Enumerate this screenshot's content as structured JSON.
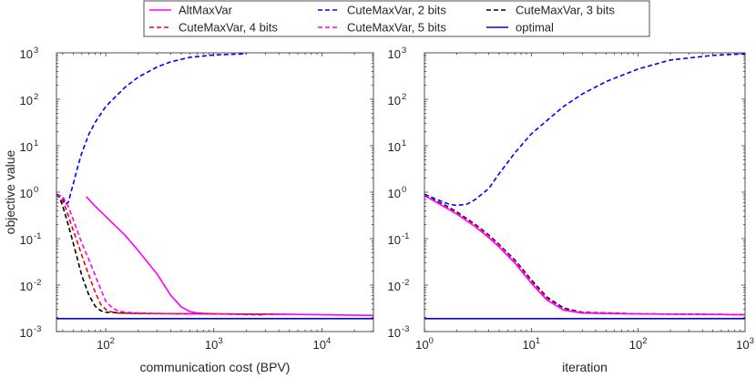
{
  "legend": {
    "entries": [
      {
        "label": "AltMaxVar",
        "color": "#ff00ff",
        "dash": "solid"
      },
      {
        "label": "CuteMaxVar, 2 bits",
        "color": "#0000ff",
        "dash": "dashed"
      },
      {
        "label": "CuteMaxVar, 3 bits",
        "color": "#000000",
        "dash": "dashed"
      },
      {
        "label": "CuteMaxVar, 4 bits",
        "color": "#ff0000",
        "dash": "dashed"
      },
      {
        "label": "CuteMaxVar, 5 bits",
        "color": "#ff00ff",
        "dash": "dashed"
      },
      {
        "label": "optimal",
        "color": "#0000ff",
        "dash": "solid"
      }
    ]
  },
  "chart_data": [
    {
      "type": "line",
      "xscale": "log",
      "yscale": "log",
      "xlim": [
        35,
        30000
      ],
      "ylim": [
        0.001,
        1000
      ],
      "xlabel": "communication cost (BPV)",
      "ylabel": "objective value",
      "xticks": [
        {
          "value": 100,
          "base": "10",
          "exp": "2"
        },
        {
          "value": 1000,
          "base": "10",
          "exp": "3"
        },
        {
          "value": 10000,
          "base": "10",
          "exp": "4"
        }
      ],
      "yticks": [
        {
          "value": 0.001,
          "base": "10",
          "exp": "-3"
        },
        {
          "value": 0.01,
          "base": "10",
          "exp": "-2"
        },
        {
          "value": 0.1,
          "base": "10",
          "exp": "-1"
        },
        {
          "value": 1,
          "base": "10",
          "exp": "0"
        },
        {
          "value": 10,
          "base": "10",
          "exp": "1"
        },
        {
          "value": 100,
          "base": "10",
          "exp": "2"
        },
        {
          "value": 1000,
          "base": "10",
          "exp": "3"
        }
      ],
      "series": [
        {
          "name": "CuteMaxVar, 2 bits",
          "color": "#0000ff",
          "dash": "dashed",
          "x": [
            40,
            42,
            45,
            50,
            55,
            60,
            70,
            80,
            100,
            150,
            200,
            300,
            400,
            600,
            800,
            1000,
            1500,
            2000
          ],
          "y": [
            0.75,
            0.55,
            0.6,
            1.5,
            3.5,
            7,
            18,
            32,
            70,
            180,
            300,
            500,
            640,
            800,
            850,
            900,
            930,
            950
          ]
        },
        {
          "name": "AltMaxVar",
          "color": "#ff00ff",
          "dash": "solid",
          "x": [
            66,
            80,
            100,
            150,
            200,
            300,
            400,
            500,
            600,
            700,
            1000,
            2000,
            5000,
            10000,
            30000
          ],
          "y": [
            0.8,
            0.5,
            0.3,
            0.12,
            0.055,
            0.017,
            0.006,
            0.0034,
            0.0027,
            0.0025,
            0.0024,
            0.00238,
            0.00235,
            0.0023,
            0.00222
          ]
        },
        {
          "name": "CuteMaxVar, 3 bits",
          "color": "#000000",
          "dash": "dashed",
          "x": [
            35,
            37,
            40,
            45,
            50,
            55,
            60,
            70,
            80,
            90,
            100,
            150,
            300,
            1000,
            3000
          ],
          "y": [
            0.9,
            0.8,
            0.5,
            0.2,
            0.08,
            0.035,
            0.016,
            0.006,
            0.0035,
            0.0028,
            0.0026,
            0.0025,
            0.00245,
            0.0024,
            0.0023
          ]
        },
        {
          "name": "CuteMaxVar, 4 bits",
          "color": "#ff0000",
          "dash": "dashed",
          "x": [
            35,
            38,
            42,
            48,
            55,
            62,
            70,
            80,
            90,
            100,
            110,
            130,
            200,
            1000,
            4000
          ],
          "y": [
            0.9,
            0.8,
            0.5,
            0.2,
            0.08,
            0.035,
            0.016,
            0.007,
            0.0038,
            0.003,
            0.0027,
            0.0025,
            0.00245,
            0.0024,
            0.00235
          ]
        },
        {
          "name": "CuteMaxVar, 5 bits",
          "color": "#ff00ff",
          "dash": "dashed",
          "x": [
            35,
            40,
            45,
            52,
            60,
            70,
            80,
            90,
            100,
            115,
            130,
            150,
            250,
            1000,
            5000
          ],
          "y": [
            0.9,
            0.8,
            0.5,
            0.2,
            0.08,
            0.035,
            0.016,
            0.008,
            0.0045,
            0.0032,
            0.0028,
            0.0026,
            0.00245,
            0.0024,
            0.00235
          ]
        },
        {
          "name": "optimal",
          "color": "#0000ff",
          "dash": "solid",
          "x": [
            35,
            30000
          ],
          "y": [
            0.0019,
            0.0019
          ]
        }
      ]
    },
    {
      "type": "line",
      "xscale": "log",
      "yscale": "log",
      "xlim": [
        1,
        1000
      ],
      "ylim": [
        0.001,
        1000
      ],
      "xlabel": "iteration",
      "ylabel": "",
      "xticks": [
        {
          "value": 1,
          "base": "10",
          "exp": "0"
        },
        {
          "value": 10,
          "base": "10",
          "exp": "1"
        },
        {
          "value": 100,
          "base": "10",
          "exp": "2"
        },
        {
          "value": 1000,
          "base": "10",
          "exp": "3"
        }
      ],
      "yticks": [
        {
          "value": 0.001,
          "base": "10",
          "exp": "-3"
        },
        {
          "value": 0.01,
          "base": "10",
          "exp": "-2"
        },
        {
          "value": 0.1,
          "base": "10",
          "exp": "-1"
        },
        {
          "value": 1,
          "base": "10",
          "exp": "0"
        },
        {
          "value": 10,
          "base": "10",
          "exp": "1"
        },
        {
          "value": 100,
          "base": "10",
          "exp": "2"
        },
        {
          "value": 1000,
          "base": "10",
          "exp": "3"
        }
      ],
      "series": [
        {
          "name": "CuteMaxVar, 2 bits",
          "color": "#0000ff",
          "dash": "dashed",
          "x": [
            1,
            1.3,
            1.7,
            2,
            2.5,
            3,
            4,
            5,
            7,
            10,
            15,
            20,
            30,
            50,
            100,
            200,
            500,
            1000
          ],
          "y": [
            0.9,
            0.7,
            0.55,
            0.52,
            0.55,
            0.7,
            1.2,
            2.5,
            7,
            18,
            40,
            70,
            130,
            240,
            450,
            700,
            880,
            950
          ]
        },
        {
          "name": "CuteMaxVar, 3 bits",
          "color": "#000000",
          "dash": "dashed",
          "x": [
            1,
            1.5,
            2,
            3,
            4,
            5,
            7,
            10,
            14,
            20,
            30,
            100,
            1000
          ],
          "y": [
            0.85,
            0.55,
            0.38,
            0.2,
            0.12,
            0.075,
            0.035,
            0.013,
            0.0055,
            0.0032,
            0.0026,
            0.0024,
            0.00232
          ]
        },
        {
          "name": "CuteMaxVar, 4 bits",
          "color": "#ff0000",
          "dash": "dashed",
          "x": [
            1,
            1.5,
            2,
            3,
            4,
            5,
            7,
            10,
            14,
            20,
            30,
            100,
            1000
          ],
          "y": [
            0.85,
            0.52,
            0.36,
            0.19,
            0.115,
            0.072,
            0.033,
            0.012,
            0.0052,
            0.003,
            0.0026,
            0.0024,
            0.00232
          ]
        },
        {
          "name": "CuteMaxVar, 5 bits",
          "color": "#ff00ff",
          "dash": "dashed",
          "x": [
            1,
            1.5,
            2,
            3,
            4,
            5,
            7,
            10,
            14,
            20,
            30,
            100,
            1000
          ],
          "y": [
            0.85,
            0.51,
            0.35,
            0.185,
            0.11,
            0.07,
            0.032,
            0.0115,
            0.005,
            0.003,
            0.0025,
            0.0024,
            0.00232
          ]
        },
        {
          "name": "AltMaxVar",
          "color": "#ff00ff",
          "dash": "solid",
          "x": [
            1,
            1.5,
            2,
            3,
            4,
            5,
            7,
            10,
            14,
            20,
            30,
            100,
            1000
          ],
          "y": [
            0.85,
            0.5,
            0.34,
            0.18,
            0.105,
            0.066,
            0.03,
            0.011,
            0.0048,
            0.0029,
            0.0025,
            0.0024,
            0.0023
          ]
        },
        {
          "name": "optimal",
          "color": "#0000ff",
          "dash": "solid",
          "x": [
            1,
            1000
          ],
          "y": [
            0.0019,
            0.0019
          ]
        }
      ]
    }
  ]
}
